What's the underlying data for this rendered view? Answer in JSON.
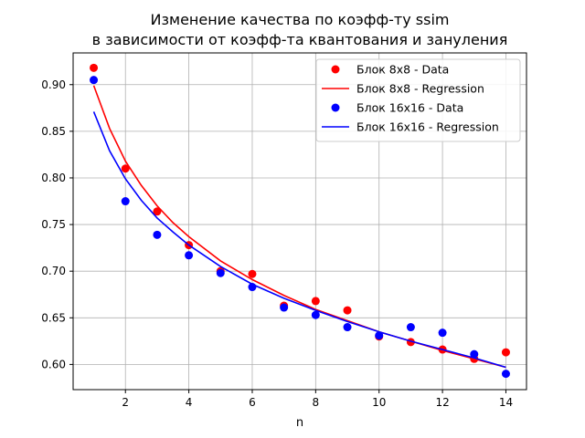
{
  "chart_data": {
    "type": "scatter",
    "title_lines": [
      "Изменение качества по коэфф-ту ssim",
      "в зависимости от коэфф-та квантования и зануления"
    ],
    "xlabel": "n",
    "ylabel": "",
    "xlim": [
      0.35,
      14.65
    ],
    "ylim": [
      0.573,
      0.934
    ],
    "xticks": [
      2,
      4,
      6,
      8,
      10,
      12,
      14
    ],
    "yticks": [
      0.6,
      0.65,
      0.7,
      0.75,
      0.8,
      0.85,
      0.9
    ],
    "grid": true,
    "legend_position": "top-right",
    "colors": {
      "red": "#ff0000",
      "blue": "#0000ff"
    },
    "series": [
      {
        "name": "Блок 8x8 - Data",
        "kind": "scatter",
        "color": "#ff0000",
        "x": [
          1,
          2,
          3,
          4,
          5,
          6,
          7,
          8,
          9,
          10,
          11,
          12,
          13,
          14
        ],
        "y": [
          0.918,
          0.81,
          0.764,
          0.728,
          0.7,
          0.697,
          0.663,
          0.668,
          0.658,
          0.63,
          0.624,
          0.616,
          0.606,
          0.613
        ]
      },
      {
        "name": "Блок 8x8 - Regression",
        "kind": "line",
        "color": "#ff0000",
        "x": [
          1,
          1.5,
          2,
          2.5,
          3,
          3.5,
          4,
          5,
          6,
          7,
          8,
          9,
          10,
          11,
          12,
          13,
          14
        ],
        "y": [
          0.899,
          0.853,
          0.818,
          0.792,
          0.77,
          0.752,
          0.737,
          0.711,
          0.691,
          0.674,
          0.659,
          0.647,
          0.635,
          0.625,
          0.615,
          0.606,
          0.597
        ]
      },
      {
        "name": "Блок 16x16 - Data",
        "kind": "scatter",
        "color": "#0000ff",
        "x": [
          1,
          2,
          3,
          4,
          5,
          6,
          7,
          8,
          9,
          10,
          11,
          12,
          13,
          14
        ],
        "y": [
          0.905,
          0.775,
          0.739,
          0.717,
          0.698,
          0.683,
          0.661,
          0.653,
          0.64,
          0.631,
          0.64,
          0.634,
          0.611,
          0.59
        ]
      },
      {
        "name": "Блок 16x16 - Regression",
        "kind": "line",
        "color": "#0000ff",
        "x": [
          1,
          1.5,
          2,
          2.5,
          3,
          3.5,
          4,
          5,
          6,
          7,
          8,
          9,
          10,
          11,
          12,
          13,
          14
        ],
        "y": [
          0.871,
          0.829,
          0.799,
          0.776,
          0.757,
          0.742,
          0.728,
          0.705,
          0.686,
          0.671,
          0.658,
          0.646,
          0.635,
          0.625,
          0.616,
          0.607,
          0.597
        ]
      }
    ]
  }
}
